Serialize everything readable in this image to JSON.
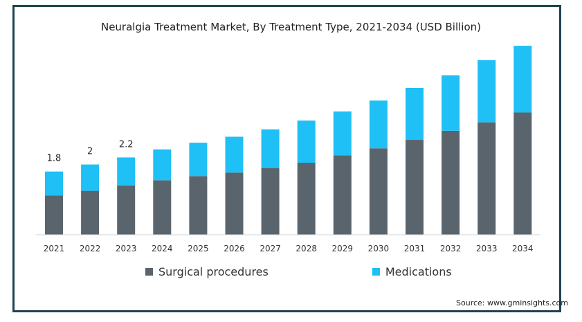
{
  "chart_data": {
    "type": "bar",
    "stacked": true,
    "title": "Neuralgia Treatment Market, By Treatment Type, 2021-2034 (USD Billion)",
    "categories": [
      "2021",
      "2022",
      "2023",
      "2024",
      "2025",
      "2026",
      "2027",
      "2028",
      "2029",
      "2030",
      "2031",
      "2032",
      "2033",
      "2034"
    ],
    "series": [
      {
        "name": "Surgical procedures",
        "color": "#5a646d",
        "values": [
          1.12,
          1.25,
          1.4,
          1.55,
          1.67,
          1.77,
          1.9,
          2.05,
          2.26,
          2.46,
          2.7,
          2.96,
          3.2,
          3.48
        ]
      },
      {
        "name": "Medications",
        "color": "#1ec0f5",
        "values": [
          0.68,
          0.75,
          0.8,
          0.88,
          0.95,
          1.02,
          1.1,
          1.2,
          1.25,
          1.36,
          1.48,
          1.58,
          1.77,
          1.9
        ]
      }
    ],
    "data_labels": [
      {
        "category": "2021",
        "text": "1.8"
      },
      {
        "category": "2022",
        "text": "2"
      },
      {
        "category": "2023",
        "text": "2.2"
      }
    ],
    "ylim": [
      0,
      5.5
    ],
    "grid": false,
    "legend_position": "bottom"
  },
  "source": "Source: www.gminsights.com"
}
